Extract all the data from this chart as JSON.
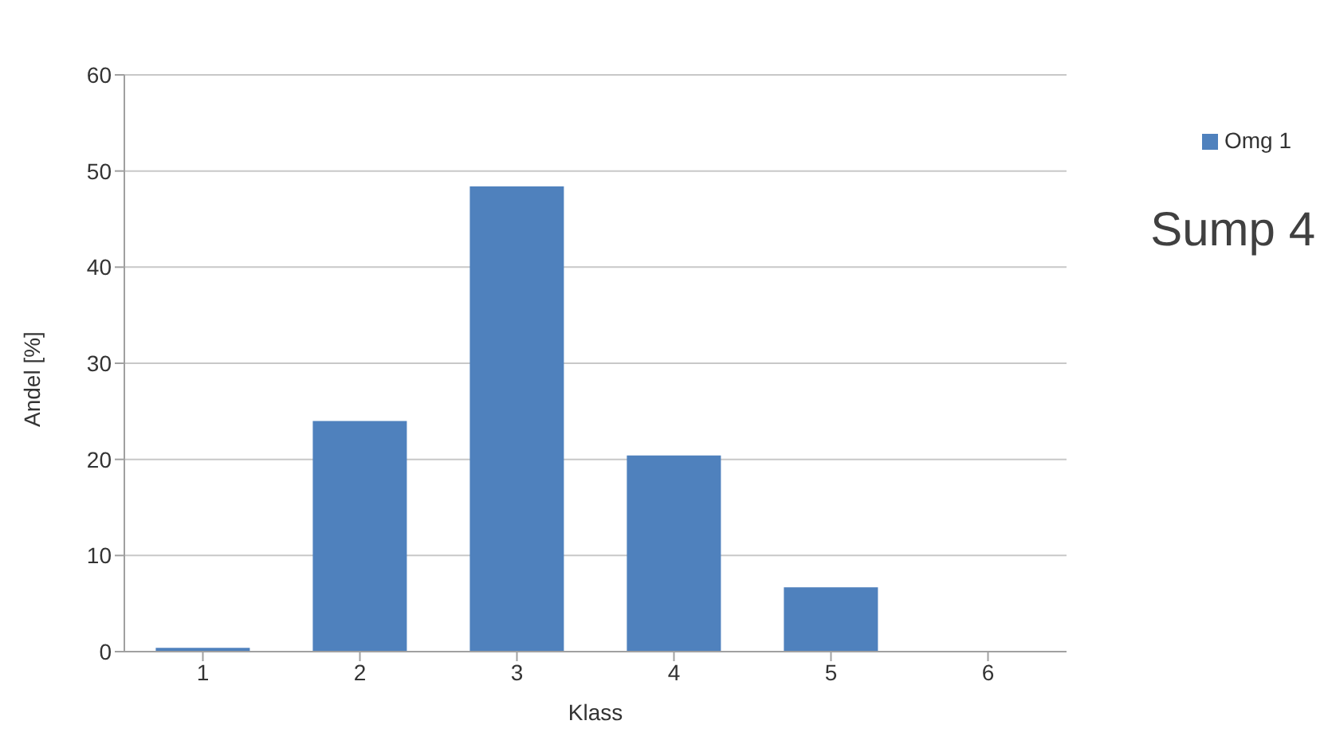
{
  "chart_data": {
    "type": "bar",
    "categories": [
      "1",
      "2",
      "3",
      "4",
      "5",
      "6"
    ],
    "series": [
      {
        "name": "Omg 1",
        "color": "#4f81bd",
        "values": [
          0.4,
          24.0,
          48.4,
          20.4,
          6.7,
          0
        ]
      }
    ],
    "xlabel": "Klass",
    "ylabel": "Andel [%]",
    "ylim": [
      0,
      60
    ],
    "yticks": [
      0,
      10,
      20,
      30,
      40,
      50,
      60
    ],
    "grid": "y",
    "legend": "right",
    "annotations": [
      "Sump 4"
    ]
  }
}
